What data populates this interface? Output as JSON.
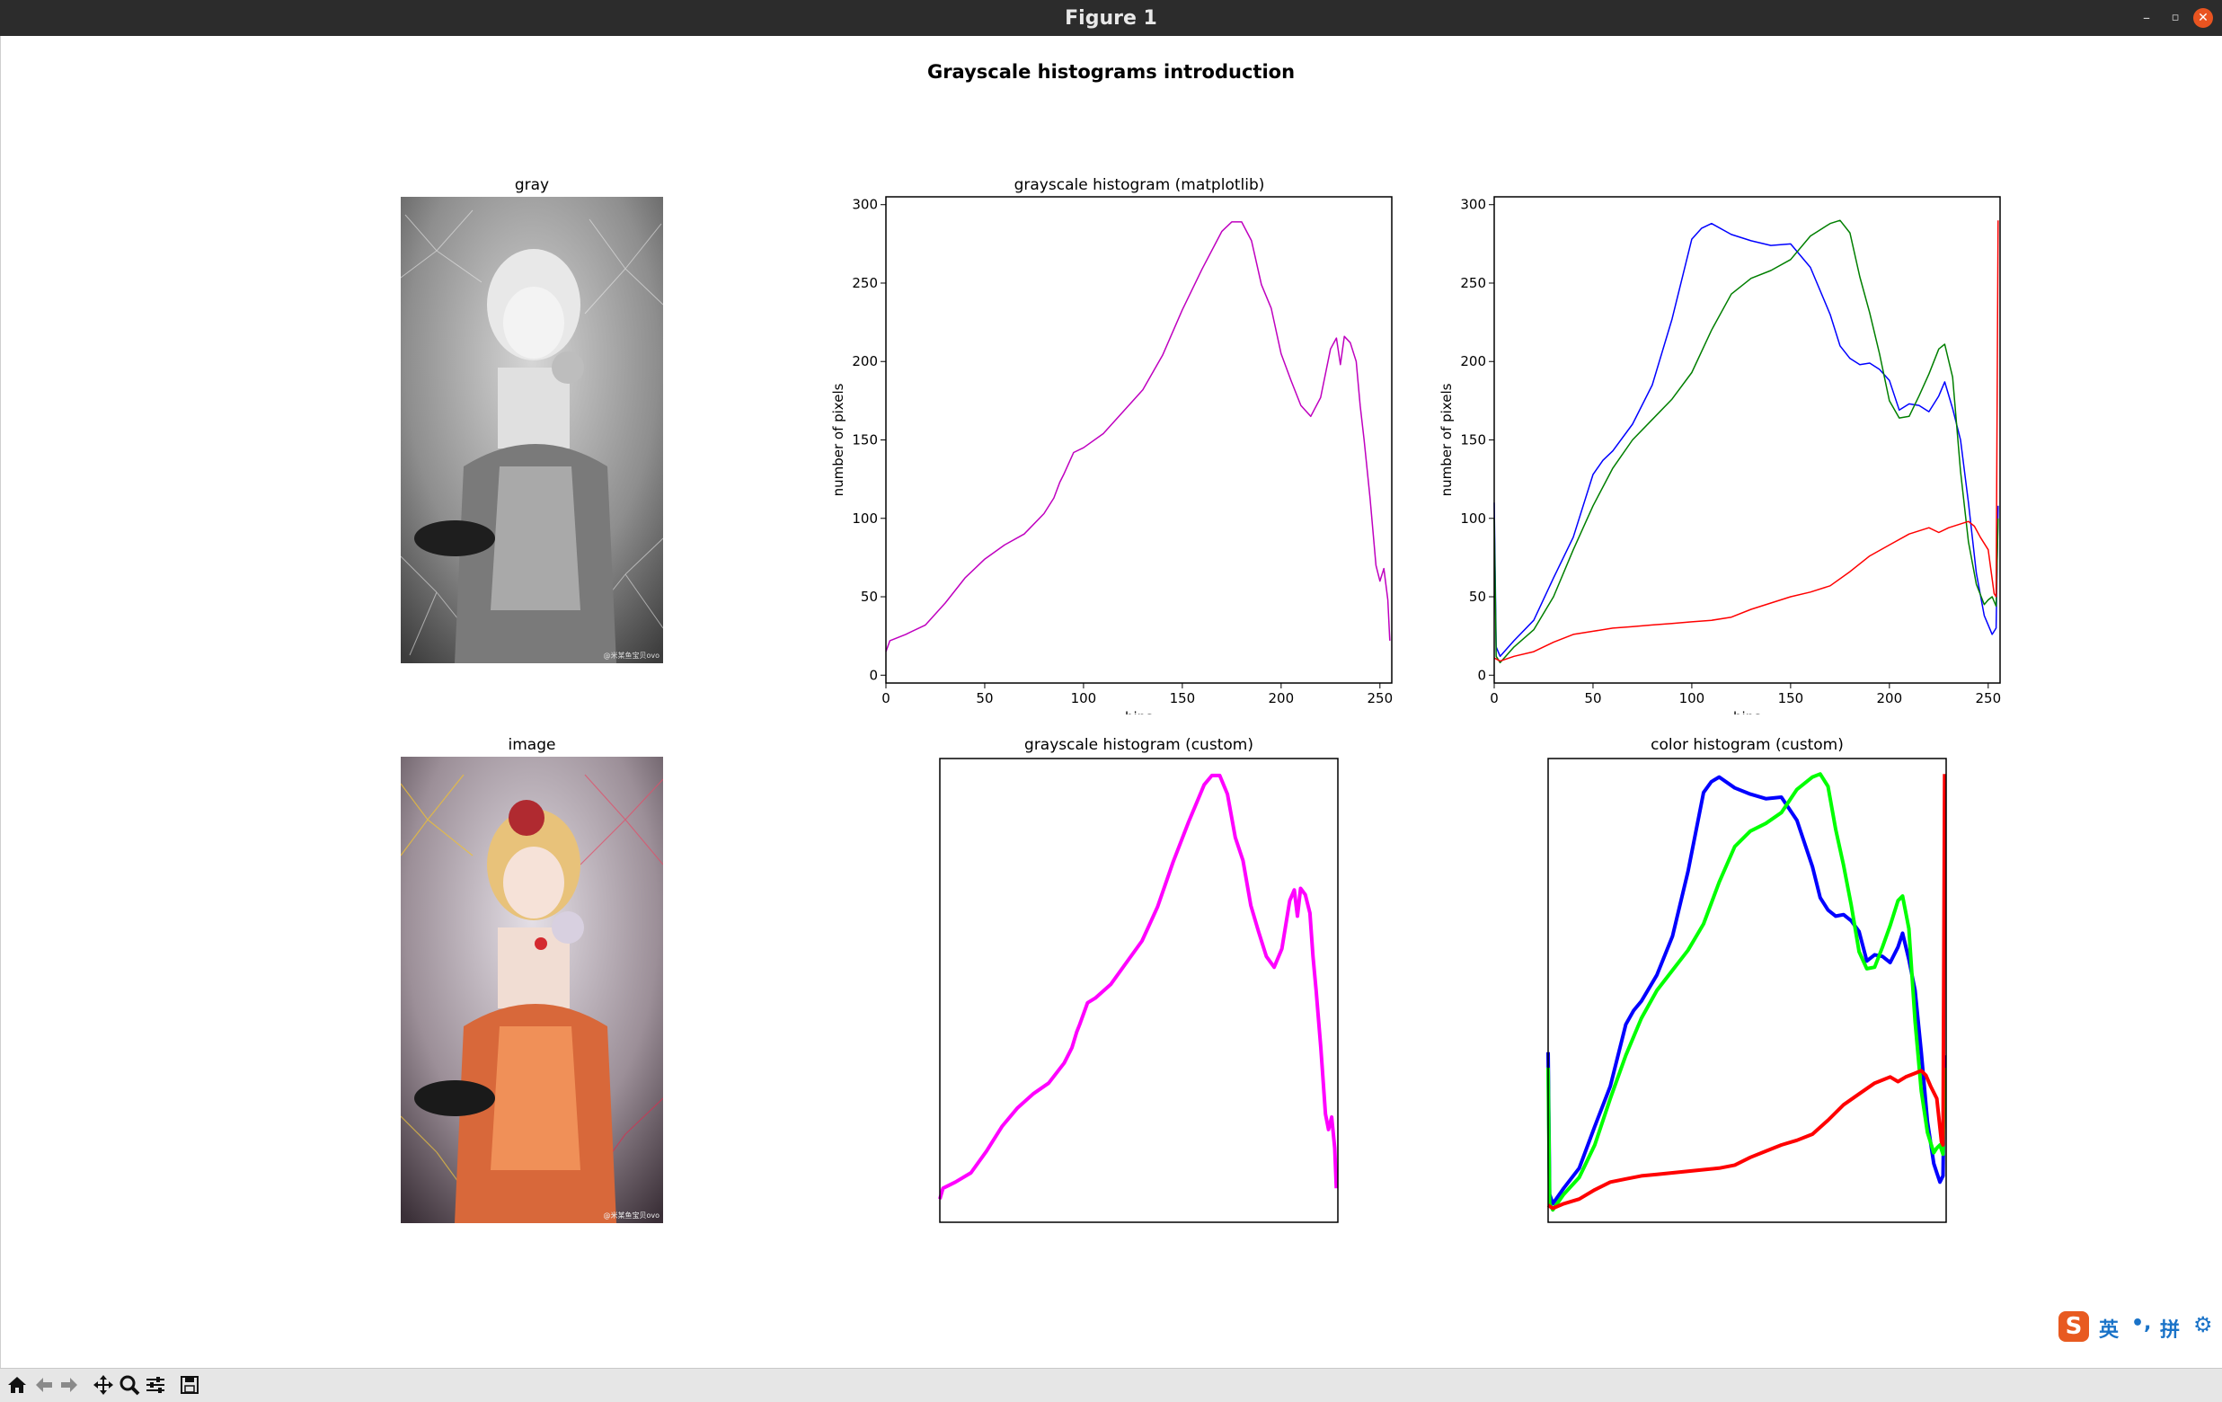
{
  "window": {
    "title": "Figure 1",
    "minimize_icon": "minimize-icon",
    "maximize_icon": "maximize-icon",
    "close_icon": "close-icon"
  },
  "figure": {
    "suptitle": "Grayscale histograms introduction",
    "panels": {
      "gray": {
        "title": "gray",
        "watermark": "@米某鱼宝贝ovo"
      },
      "image": {
        "title": "image",
        "watermark": "@米某鱼宝贝ovo"
      },
      "hist_mpl": {
        "title": "grayscale histogram (matplotlib)"
      },
      "color_mpl": {
        "title": ""
      },
      "hist_custom": {
        "title": "grayscale histogram (custom)"
      },
      "color_custom": {
        "title": "color histogram (custom)"
      }
    }
  },
  "chart_data": [
    {
      "type": "line",
      "title": "grayscale histogram (matplotlib)",
      "xlabel": "bins",
      "ylabel": "number of pixels",
      "xlim": [
        0,
        256
      ],
      "ylim": [
        -5,
        305
      ],
      "xticks": [
        0,
        50,
        100,
        150,
        200,
        250
      ],
      "yticks": [
        0,
        50,
        100,
        150,
        200,
        250,
        300
      ],
      "grid": false,
      "series": [
        {
          "color": "#bf00bf",
          "x": [
            0,
            2,
            10,
            20,
            30,
            40,
            50,
            60,
            70,
            80,
            85,
            88,
            90,
            95,
            100,
            110,
            120,
            130,
            140,
            150,
            160,
            170,
            175,
            180,
            185,
            190,
            195,
            200,
            205,
            210,
            215,
            220,
            225,
            228,
            230,
            232,
            235,
            238,
            240,
            242,
            245,
            248,
            250,
            252,
            254,
            255
          ],
          "y": [
            15,
            22,
            26,
            32,
            46,
            62,
            74,
            83,
            90,
            103,
            113,
            123,
            128,
            142,
            145,
            154,
            168,
            182,
            204,
            233,
            259,
            283,
            289,
            289,
            277,
            249,
            234,
            205,
            188,
            172,
            165,
            177,
            208,
            215,
            198,
            216,
            212,
            200,
            172,
            150,
            113,
            70,
            60,
            68,
            48,
            22
          ]
        }
      ]
    },
    {
      "type": "line",
      "title": "",
      "xlabel": "bins",
      "ylabel": "number of pixels",
      "xlim": [
        0,
        256
      ],
      "ylim": [
        -5,
        305
      ],
      "xticks": [
        0,
        50,
        100,
        150,
        200,
        250
      ],
      "yticks": [
        0,
        50,
        100,
        150,
        200,
        250,
        300
      ],
      "grid": false,
      "series": [
        {
          "color": "#0000ff",
          "x": [
            0,
            1,
            3,
            10,
            20,
            30,
            40,
            50,
            55,
            60,
            70,
            80,
            90,
            100,
            105,
            110,
            120,
            130,
            140,
            150,
            160,
            170,
            175,
            180,
            185,
            190,
            195,
            200,
            205,
            210,
            215,
            220,
            225,
            228,
            232,
            236,
            240,
            244,
            248,
            250,
            252,
            254,
            255
          ],
          "y": [
            110,
            18,
            12,
            22,
            35,
            62,
            88,
            128,
            137,
            143,
            160,
            185,
            227,
            278,
            285,
            288,
            281,
            277,
            274,
            275,
            260,
            230,
            210,
            202,
            198,
            199,
            195,
            188,
            169,
            173,
            172,
            168,
            178,
            187,
            170,
            150,
            110,
            65,
            38,
            32,
            26,
            30,
            108
          ]
        },
        {
          "color": "#007f00",
          "x": [
            0,
            1,
            3,
            10,
            20,
            30,
            40,
            50,
            60,
            70,
            80,
            90,
            100,
            110,
            120,
            130,
            140,
            150,
            160,
            170,
            175,
            180,
            185,
            190,
            195,
            200,
            205,
            210,
            215,
            220,
            225,
            228,
            232,
            236,
            240,
            244,
            248,
            250,
            252,
            254,
            255
          ],
          "y": [
            100,
            12,
            8,
            18,
            29,
            50,
            80,
            108,
            132,
            150,
            163,
            176,
            193,
            220,
            243,
            253,
            258,
            265,
            280,
            288,
            290,
            282,
            254,
            231,
            205,
            175,
            164,
            165,
            178,
            192,
            208,
            211,
            190,
            130,
            85,
            58,
            45,
            48,
            50,
            44,
            100
          ]
        },
        {
          "color": "#ff0000",
          "x": [
            0,
            3,
            10,
            20,
            30,
            40,
            50,
            60,
            70,
            80,
            90,
            100,
            110,
            120,
            130,
            140,
            150,
            160,
            170,
            180,
            190,
            200,
            210,
            215,
            220,
            225,
            230,
            235,
            240,
            243,
            246,
            250,
            253,
            254,
            255
          ],
          "y": [
            11,
            9,
            12,
            15,
            21,
            26,
            28,
            30,
            31,
            32,
            33,
            34,
            35,
            37,
            42,
            46,
            50,
            53,
            57,
            66,
            76,
            83,
            90,
            92,
            94,
            91,
            94,
            96,
            98,
            95,
            88,
            80,
            52,
            50,
            290
          ]
        }
      ]
    },
    {
      "type": "line",
      "title": "grayscale histogram (custom)",
      "xlabel": "",
      "ylabel": "",
      "xlim": [
        0,
        256
      ],
      "ylim": [
        0,
        300
      ],
      "grid": false,
      "series": [
        {
          "color": "#ff00ff",
          "x": [
            0,
            2,
            10,
            20,
            30,
            40,
            50,
            60,
            70,
            80,
            85,
            88,
            90,
            95,
            100,
            110,
            120,
            130,
            140,
            150,
            160,
            170,
            175,
            180,
            185,
            190,
            195,
            200,
            205,
            210,
            215,
            220,
            225,
            228,
            230,
            232,
            235,
            238,
            240,
            242,
            245,
            248,
            250,
            252,
            254,
            255
          ],
          "y": [
            15,
            22,
            26,
            32,
            46,
            62,
            74,
            83,
            90,
            103,
            113,
            123,
            128,
            142,
            145,
            154,
            168,
            182,
            204,
            233,
            259,
            283,
            289,
            289,
            277,
            249,
            234,
            205,
            188,
            172,
            165,
            177,
            208,
            215,
            198,
            216,
            212,
            200,
            172,
            150,
            113,
            70,
            60,
            68,
            48,
            22
          ]
        }
      ]
    },
    {
      "type": "line",
      "title": "color histogram (custom)",
      "xlabel": "",
      "ylabel": "",
      "xlim": [
        0,
        256
      ],
      "ylim": [
        0,
        300
      ],
      "grid": false,
      "series": [
        {
          "color": "#0000ff",
          "x": [
            0,
            1,
            3,
            10,
            20,
            30,
            40,
            50,
            55,
            60,
            70,
            80,
            90,
            100,
            105,
            110,
            120,
            130,
            140,
            150,
            160,
            170,
            175,
            180,
            185,
            190,
            195,
            200,
            205,
            210,
            215,
            220,
            225,
            228,
            232,
            236,
            240,
            244,
            248,
            250,
            252,
            254,
            255
          ],
          "y": [
            110,
            18,
            12,
            22,
            35,
            62,
            88,
            128,
            137,
            143,
            160,
            185,
            227,
            278,
            285,
            288,
            281,
            277,
            274,
            275,
            260,
            230,
            210,
            202,
            198,
            199,
            195,
            188,
            169,
            173,
            172,
            168,
            178,
            187,
            170,
            150,
            110,
            65,
            38,
            32,
            26,
            30,
            108
          ]
        },
        {
          "color": "#00ff00",
          "x": [
            0,
            1,
            3,
            10,
            20,
            30,
            40,
            50,
            60,
            70,
            80,
            90,
            100,
            110,
            120,
            130,
            140,
            150,
            160,
            170,
            175,
            180,
            185,
            190,
            195,
            200,
            205,
            210,
            215,
            220,
            225,
            228,
            232,
            236,
            240,
            244,
            248,
            250,
            252,
            254,
            255
          ],
          "y": [
            100,
            12,
            8,
            18,
            29,
            50,
            80,
            108,
            132,
            150,
            163,
            176,
            193,
            220,
            243,
            253,
            258,
            265,
            280,
            288,
            290,
            282,
            254,
            231,
            205,
            175,
            164,
            165,
            178,
            192,
            208,
            211,
            190,
            130,
            85,
            58,
            45,
            48,
            50,
            44,
            100
          ]
        },
        {
          "color": "#ff0000",
          "x": [
            0,
            3,
            10,
            20,
            30,
            40,
            50,
            60,
            70,
            80,
            90,
            100,
            110,
            120,
            130,
            140,
            150,
            160,
            170,
            180,
            190,
            200,
            210,
            215,
            220,
            225,
            230,
            235,
            240,
            243,
            246,
            250,
            253,
            254,
            255
          ],
          "y": [
            11,
            9,
            12,
            15,
            21,
            26,
            28,
            30,
            31,
            32,
            33,
            34,
            35,
            37,
            42,
            46,
            50,
            53,
            57,
            66,
            76,
            83,
            90,
            92,
            94,
            91,
            94,
            96,
            98,
            95,
            88,
            80,
            52,
            50,
            290
          ]
        }
      ]
    }
  ],
  "toolbar": {
    "items": [
      "home-icon",
      "back-icon",
      "forward-icon",
      "pan-icon",
      "zoom-icon",
      "configure-subplots-icon",
      "save-icon"
    ]
  },
  "ime": {
    "logo": "S",
    "mode": "英",
    "punct": "•,",
    "input": "拼",
    "settings_icon": "gear-icon"
  }
}
